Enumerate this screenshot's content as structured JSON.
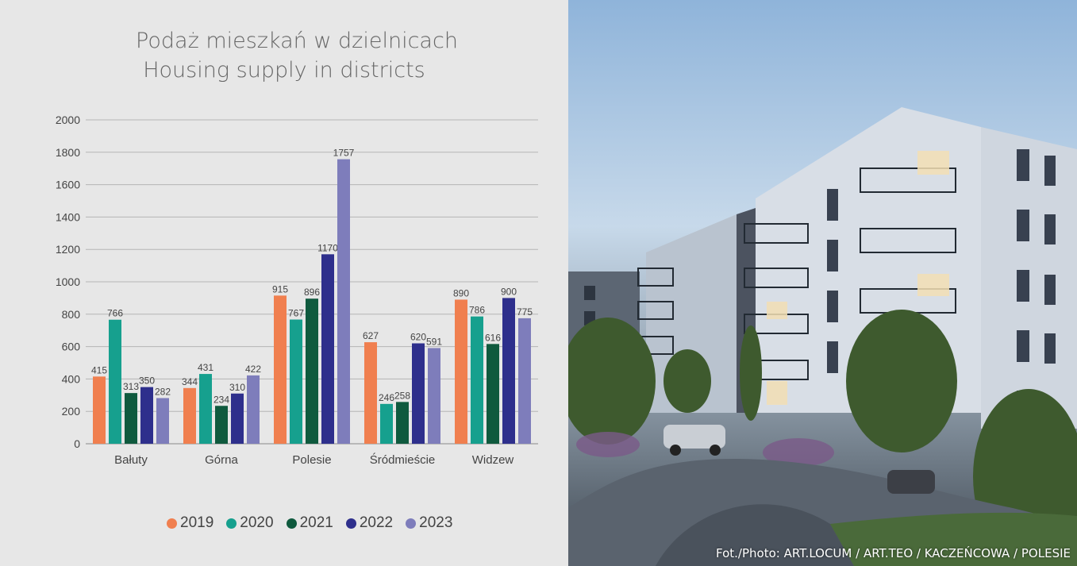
{
  "chart_data": {
    "type": "bar",
    "title": "Podaż mieszkań w dzielnicach",
    "subtitle": "Housing supply in districts",
    "categories": [
      "Bałuty",
      "Górna",
      "Polesie",
      "Śródmieście",
      "Widzew"
    ],
    "ylim": [
      0,
      2000
    ],
    "yticks": [
      0,
      200,
      400,
      600,
      800,
      1000,
      1200,
      1400,
      1600,
      1800,
      2000
    ],
    "grid": true,
    "legend_position": "bottom",
    "series": [
      {
        "name": "2019",
        "color": "#f07f4f",
        "values": [
          415,
          344,
          915,
          627,
          890
        ]
      },
      {
        "name": "2020",
        "color": "#16a08e",
        "values": [
          766,
          431,
          767,
          246,
          786
        ]
      },
      {
        "name": "2021",
        "color": "#0f5a3e",
        "values": [
          313,
          234,
          896,
          258,
          616
        ]
      },
      {
        "name": "2022",
        "color": "#2e2f8c",
        "values": [
          350,
          310,
          1170,
          620,
          900
        ]
      },
      {
        "name": "2023",
        "color": "#7e7dbb",
        "values": [
          282,
          422,
          1757,
          591,
          775
        ]
      }
    ]
  },
  "photo": {
    "credit": "Fot./Photo: ART.LOCUM / ART.TEO / KACZEŃCOWA / POLESIE"
  }
}
